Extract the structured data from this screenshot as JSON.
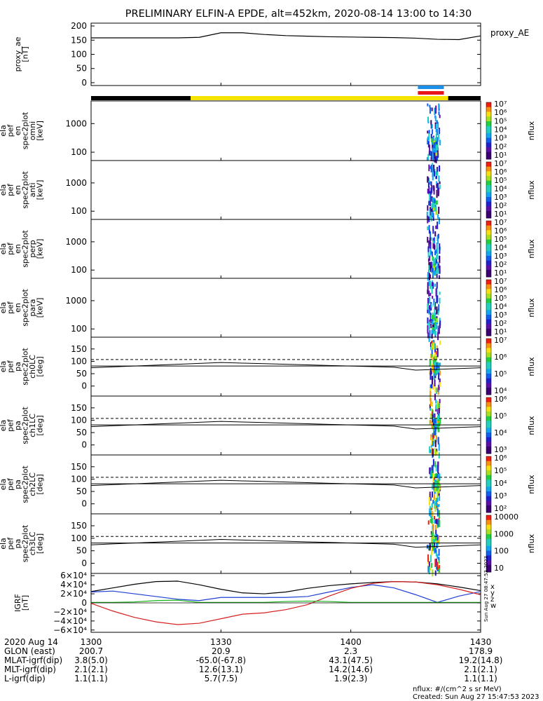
{
  "title": "PRELIMINARY ELFIN-A EPDE, alt=452km, 2020-08-14 13:00 to 14:30",
  "footer": {
    "units": "nflux: #/(cm^2 s sr MeV)",
    "created": "Created: Sun Aug 27 15:47:53 2023",
    "side_stamp": "Sun Aug 27 08:47:53 2023"
  },
  "colors": {
    "night_bar": "#000000",
    "sun_bar": "#f5e400",
    "marker_blue": "#1e8fe6",
    "marker_red": "#e8161a",
    "line": "#000000",
    "grf_x": "#000000",
    "grf_y": "#1f3fd6",
    "grf_z": "#d62020",
    "grf_w": "#19b519"
  },
  "chart_data": [
    {
      "id": "proxy_ae",
      "type": "line",
      "ylabel": [
        "proxy_ae",
        "[nT]"
      ],
      "yticks": [
        "200",
        "150",
        "100",
        "50",
        "0"
      ],
      "ylim": [
        -10,
        210
      ],
      "series_name": "proxy_AE",
      "x": [
        0,
        5,
        10,
        15,
        20,
        25,
        30,
        35,
        40,
        45,
        50,
        55,
        60,
        65,
        70,
        75,
        80,
        85,
        90
      ],
      "values": [
        158,
        158,
        158,
        158,
        158,
        160,
        176,
        176,
        170,
        166,
        164,
        162,
        161,
        160,
        159,
        157,
        153,
        152,
        165
      ]
    },
    {
      "id": "en_omni",
      "type": "heatmap",
      "ylabel": [
        "ela",
        "pef",
        "en",
        "spec2plot",
        "omni",
        "[keV]"
      ],
      "yticks": [
        "1000",
        "100"
      ],
      "colorbar_label": "nflux",
      "colorbar_ticks": [
        "10⁷",
        "10⁶",
        "10⁵",
        "10⁴",
        "10³",
        "10²",
        "10¹"
      ],
      "activity_minutes": [
        77.5,
        80.5
      ]
    },
    {
      "id": "en_anti",
      "type": "heatmap",
      "ylabel": [
        "ela",
        "pef",
        "en",
        "spec2plot",
        "anti",
        "[keV]"
      ],
      "yticks": [
        "1000",
        "100"
      ],
      "colorbar_label": "nflux",
      "colorbar_ticks": [
        "10⁷",
        "10⁶",
        "10⁵",
        "10⁴",
        "10³",
        "10²",
        "10¹"
      ],
      "activity_minutes": [
        77.5,
        80.5
      ]
    },
    {
      "id": "en_perp",
      "type": "heatmap",
      "ylabel": [
        "ela",
        "pef",
        "en",
        "spec2plot",
        "perp",
        "[keV]"
      ],
      "yticks": [
        "1000",
        "100"
      ],
      "colorbar_label": "nflux",
      "colorbar_ticks": [
        "10⁷",
        "10⁶",
        "10⁵",
        "10⁴",
        "10³",
        "10²",
        "10¹"
      ],
      "activity_minutes": [
        77.5,
        80.5
      ]
    },
    {
      "id": "en_para",
      "type": "heatmap",
      "ylabel": [
        "ela",
        "pef",
        "en",
        "spec2plot",
        "para",
        "[keV]"
      ],
      "yticks": [
        "1000",
        "100"
      ],
      "colorbar_label": "nflux",
      "colorbar_ticks": [
        "10⁷",
        "10⁶",
        "10⁵",
        "10⁴",
        "10³",
        "10²",
        "10¹"
      ],
      "activity_minutes": [
        77.5,
        80.5
      ]
    },
    {
      "id": "pa_ch0",
      "type": "heatmap",
      "ylabel": [
        "ela",
        "pef",
        "pa",
        "spec2plot",
        "ch0LC",
        "[deg]"
      ],
      "yticks": [
        "150",
        "100",
        "50",
        "0"
      ],
      "colorbar_label": "nflux",
      "colorbar_ticks": [
        "10⁷",
        "10⁶",
        "10⁵",
        "10⁴"
      ],
      "activity_minutes": [
        78,
        80.5
      ]
    },
    {
      "id": "pa_ch1",
      "type": "heatmap",
      "ylabel": [
        "ela",
        "pef",
        "pa",
        "spec2plot",
        "ch1LC",
        "[deg]"
      ],
      "yticks": [
        "150",
        "100",
        "50",
        "0"
      ],
      "colorbar_label": "nflux",
      "colorbar_ticks": [
        "10⁶",
        "10⁵",
        "10⁴",
        "10³"
      ],
      "activity_minutes": [
        78,
        80.5
      ]
    },
    {
      "id": "pa_ch2",
      "type": "heatmap",
      "ylabel": [
        "ela",
        "pef",
        "pa",
        "spec2plot",
        "ch2LC",
        "[deg]"
      ],
      "yticks": [
        "150",
        "100",
        "50",
        "0"
      ],
      "colorbar_label": "nflux",
      "colorbar_ticks": [
        "10⁶",
        "10⁵",
        "10⁴",
        "10³",
        "10²"
      ],
      "activity_minutes": [
        78,
        80.5
      ]
    },
    {
      "id": "pa_ch3",
      "type": "heatmap",
      "ylabel": [
        "ela",
        "pef",
        "pa",
        "spec2plot",
        "ch3LC",
        "[deg]"
      ],
      "yticks": [
        "150",
        "100",
        "50",
        "0"
      ],
      "colorbar_label": "nflux",
      "colorbar_ticks": [
        "10000",
        "1000",
        "100",
        "10"
      ],
      "activity_minutes": [
        77.5,
        80.5
      ]
    },
    {
      "id": "igrf",
      "type": "line",
      "ylabel": [
        "IGRF",
        "[nT]"
      ],
      "yticks": [
        "6×10⁴",
        "4×10⁴",
        "2×10⁴",
        "0",
        "−2×10⁴",
        "−4×10⁴",
        "−6×10⁴"
      ],
      "ylim": [
        -65000,
        65000
      ],
      "side_labels": [
        "x",
        "y",
        "z",
        "w"
      ],
      "x": [
        0,
        5,
        10,
        15,
        20,
        25,
        30,
        35,
        40,
        45,
        50,
        55,
        60,
        65,
        70,
        75,
        80,
        85,
        90
      ],
      "series": [
        {
          "values": [
            25000,
            33000,
            41000,
            47000,
            48000,
            40000,
            30000,
            22000,
            20000,
            24000,
            32000,
            38000,
            42000,
            45000,
            47000,
            46000,
            42000,
            35000,
            27000
          ]
        },
        {
          "values": [
            24000,
            26000,
            20000,
            14000,
            8000,
            5000,
            12000,
            12000,
            12000,
            12000,
            14000,
            24000,
            34000,
            40000,
            33000,
            18000,
            1000,
            15000,
            25000
          ]
        },
        {
          "values": [
            -1000,
            -18000,
            -32000,
            -42000,
            -48000,
            -45000,
            -35000,
            -25000,
            -22000,
            -15000,
            -4000,
            15000,
            32000,
            43000,
            47000,
            46000,
            40000,
            30000,
            18000
          ]
        },
        {
          "values": [
            1000,
            1000,
            2000,
            5000,
            6000,
            1000,
            1000,
            1000,
            1000,
            3000,
            4000,
            3000,
            1000,
            1000,
            1000,
            1000,
            1000,
            1000,
            1000
          ]
        }
      ]
    }
  ],
  "time_axis": {
    "tick_labels": [
      "1300",
      "1330",
      "1400",
      "1430"
    ],
    "tick_minutes": [
      0,
      30,
      60,
      90
    ],
    "rows": [
      {
        "label": "2020 Aug 14",
        "values": [
          "",
          "",
          "",
          ""
        ]
      },
      {
        "label": "GLON (east)",
        "values": [
          "200.7",
          "20.9",
          "2.3",
          "178.9"
        ]
      },
      {
        "label": "MLAT-igrf(dip)",
        "values": [
          "3.8(5.0)",
          "-65.0(-67.8)",
          "43.1(47.5)",
          "19.2(14.8)"
        ]
      },
      {
        "label": "MLT-igrf(dip)",
        "values": [
          "2.1(2.1)",
          "12.6(13.1)",
          "14.2(14.6)",
          "2.1(2.1)"
        ]
      },
      {
        "label": "L-igrf(dip)",
        "values": [
          "1.1(1.1)",
          "5.7(7.5)",
          "1.9(2.3)",
          "1.1(1.1)"
        ]
      }
    ]
  },
  "sun_bar": {
    "night_end_minute": 23,
    "day_end_minute": 82.5
  },
  "science_marker": {
    "start_minute": 75.5,
    "end_minute": 81.5
  }
}
